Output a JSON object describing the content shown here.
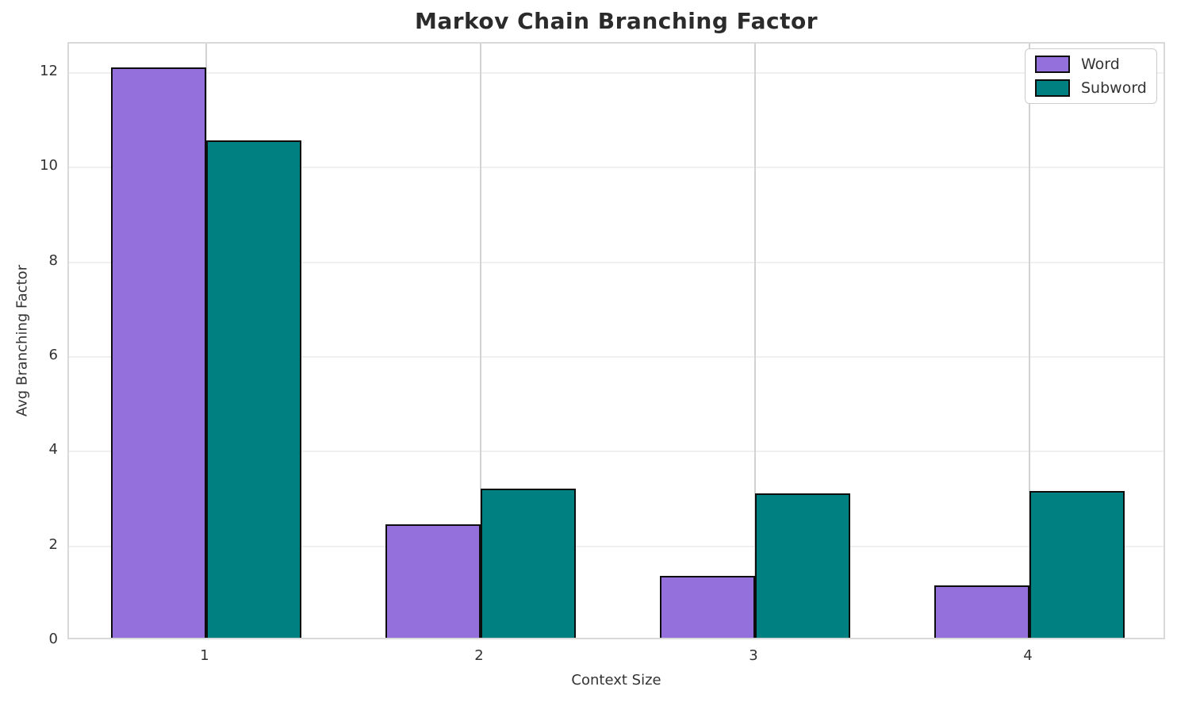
{
  "chart_data": {
    "type": "bar",
    "title": "Markov Chain Branching Factor",
    "xlabel": "Context Size",
    "ylabel": "Avg Branching Factor",
    "categories": [
      "1",
      "2",
      "3",
      "4"
    ],
    "series": [
      {
        "name": "Word",
        "color": "#9370DB",
        "values": [
          12.05,
          2.4,
          1.3,
          1.1
        ]
      },
      {
        "name": "Subword",
        "color": "#008080",
        "values": [
          10.5,
          3.15,
          3.05,
          3.1
        ]
      }
    ],
    "ylim": [
      0,
      12.62
    ],
    "yticks": [
      0,
      2,
      4,
      6,
      8,
      10,
      12
    ],
    "grid": true,
    "legend_position": "upper right",
    "bar_edge_color": "#0d0d0d",
    "colors": {
      "word_fill": "#9370DB",
      "subword_fill": "#008080",
      "grid_horizontal": "#f0f0f0",
      "grid_vertical": "#d2d2d2",
      "spine": "#d9d9d9",
      "text": "#333333",
      "title_text": "#2b2b2b"
    }
  }
}
